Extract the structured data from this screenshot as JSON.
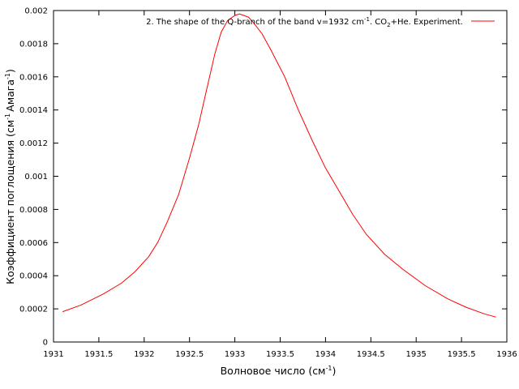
{
  "chart_data": {
    "type": "line",
    "title": "",
    "xlabel": {
      "main": "Волновое число (см",
      "sup": "-1",
      "tail": ")"
    },
    "ylabel": {
      "p1": "Коэффициент поглощения (см",
      "sup1": "-1",
      "p2": "Амага",
      "sup2": "-1",
      "p3": ")"
    },
    "xlim": [
      1931,
      1936
    ],
    "ylim": [
      0,
      0.002
    ],
    "xticks": [
      "1931",
      "1931.5",
      "1932",
      "1932.5",
      "1933",
      "1933.5",
      "1934",
      "1934.5",
      "1935",
      "1935.5",
      "1936"
    ],
    "yticks": [
      "0",
      "0.0002",
      "0.0004",
      "0.0006",
      "0.0008",
      "0.001",
      "0.0012",
      "0.0014",
      "0.0016",
      "0.0018",
      "0.002"
    ],
    "grid": false,
    "legend_position": "top-right",
    "series": [
      {
        "name": "2. The shape of the Q-branch of the band v=1932 cm-1. CO2+He. Experiment.",
        "legend": {
          "t1": "2. The shape of the Q-branch of the band v=1932 cm",
          "sup": "-1",
          "t2": ". CO",
          "sub": "2",
          "t3": "+He. Experiment."
        },
        "color": "#ff0000",
        "x": [
          1931.1,
          1931.3,
          1931.55,
          1931.75,
          1931.9,
          1932.05,
          1932.15,
          1932.25,
          1932.38,
          1932.5,
          1932.6,
          1932.7,
          1932.78,
          1932.85,
          1932.92,
          1933.0,
          1933.05,
          1933.1,
          1933.15,
          1933.2,
          1933.3,
          1933.4,
          1933.55,
          1933.7,
          1933.85,
          1934.0,
          1934.15,
          1934.3,
          1934.45,
          1934.65,
          1934.85,
          1935.1,
          1935.35,
          1935.55,
          1935.75,
          1935.88
        ],
        "values": [
          0.000183,
          0.000222,
          0.00029,
          0.000355,
          0.000425,
          0.000515,
          0.000602,
          0.00072,
          0.00089,
          0.00111,
          0.00131,
          0.00155,
          0.00174,
          0.00187,
          0.00194,
          0.00197,
          0.00198,
          0.00197,
          0.00196,
          0.00193,
          0.00186,
          0.00176,
          0.0016,
          0.0014,
          0.00122,
          0.00105,
          0.00091,
          0.00077,
          0.00065,
          0.00053,
          0.00044,
          0.00034,
          0.00026,
          0.00021,
          0.00017,
          0.00015
        ]
      }
    ]
  }
}
